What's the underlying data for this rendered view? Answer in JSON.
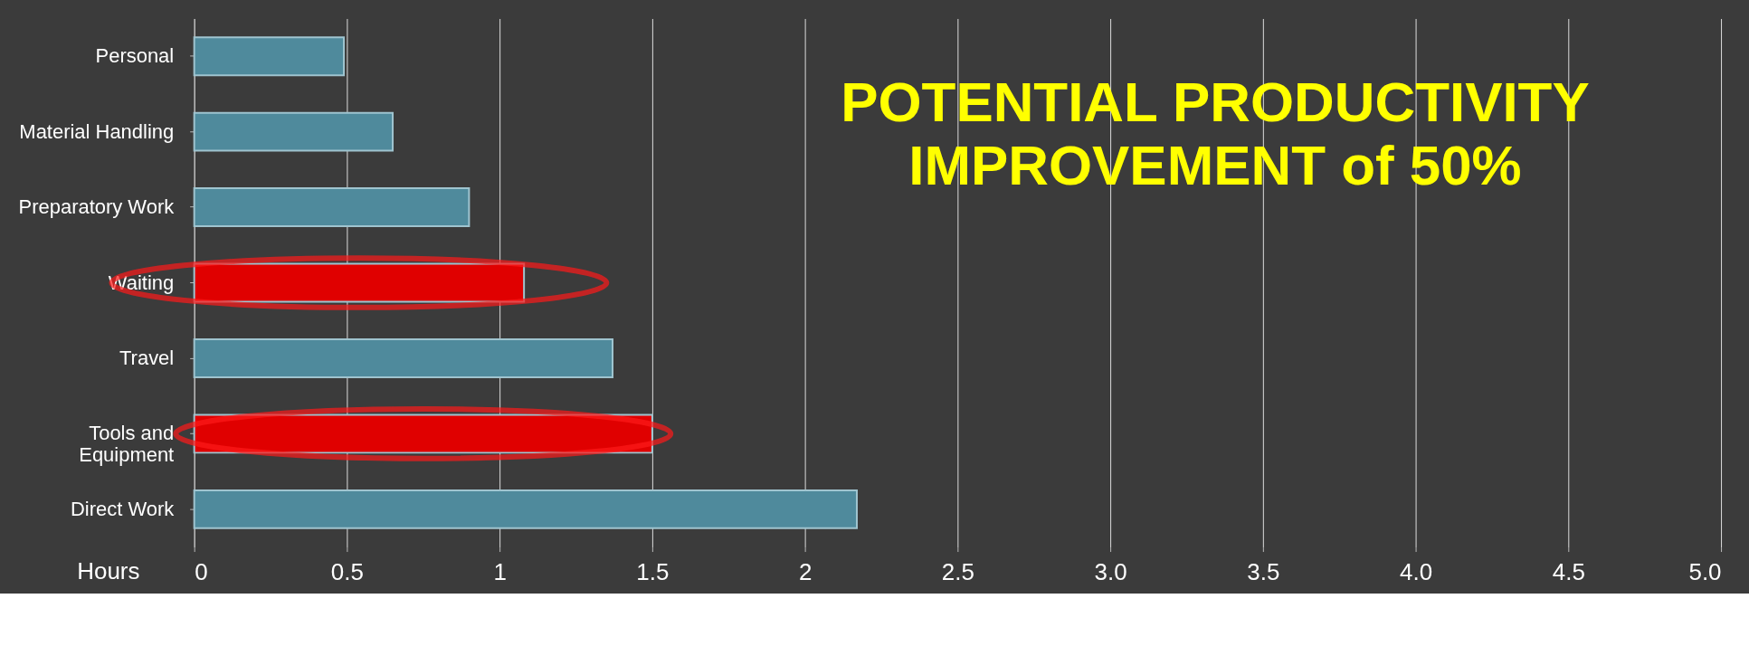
{
  "chart_data": {
    "type": "bar",
    "orientation": "horizontal",
    "categories": [
      "Personal",
      "Material Handling",
      "Preparatory Work",
      "Waiting",
      "Travel ",
      "Tools and\nEquipment",
      "Direct Work"
    ],
    "values": [
      0.49,
      0.65,
      0.9,
      1.08,
      1.37,
      1.5,
      2.17
    ],
    "colors": [
      "#4f8a9c",
      "#4f8a9c",
      "#4f8a9c",
      "#e00000",
      "#4f8a9c",
      "#e00000",
      "#4f8a9c"
    ],
    "xlim": [
      0,
      5.0
    ],
    "xticks": [
      0,
      0.5,
      1,
      1.5,
      2,
      2.5,
      {
        "value": 3,
        "label": "3.0"
      },
      {
        "value": 3.5,
        "label": "3.5"
      },
      {
        "value": 4,
        "label": "4.0"
      },
      {
        "value": 4.5,
        "label": "4.5"
      },
      {
        "value": 5,
        "label": "5.0"
      }
    ],
    "xlabel": "Hours",
    "annotations": [
      "POTENTIAL PRODUCTIVITY\nIMPROVEMENT of 50%"
    ],
    "grid": "x",
    "legend": false
  }
}
